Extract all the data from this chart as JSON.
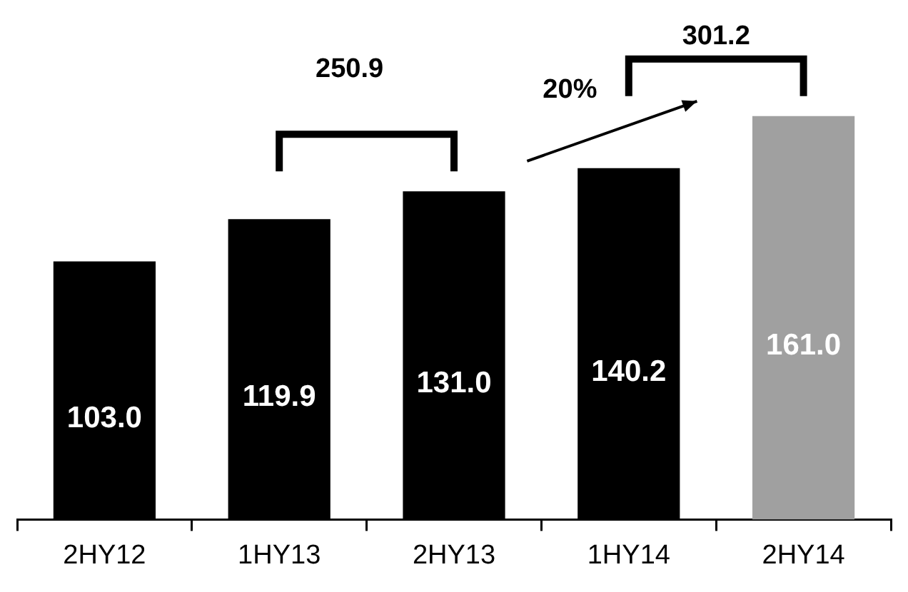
{
  "chart_data": {
    "type": "bar",
    "categories": [
      "2HY12",
      "1HY13",
      "2HY13",
      "1HY14",
      "2HY14"
    ],
    "values": [
      103.0,
      119.9,
      131.0,
      140.2,
      161.0
    ],
    "colors": [
      "#000000",
      "#000000",
      "#000000",
      "#000000",
      "#a0a0a0"
    ],
    "value_labels": [
      "103.0",
      "119.9",
      "131.0",
      "140.2",
      "161.0"
    ],
    "tick_labels": "x",
    "grid": false,
    "legend": false,
    "annotations": [
      "250.9",
      "301.2",
      "20%"
    ]
  }
}
